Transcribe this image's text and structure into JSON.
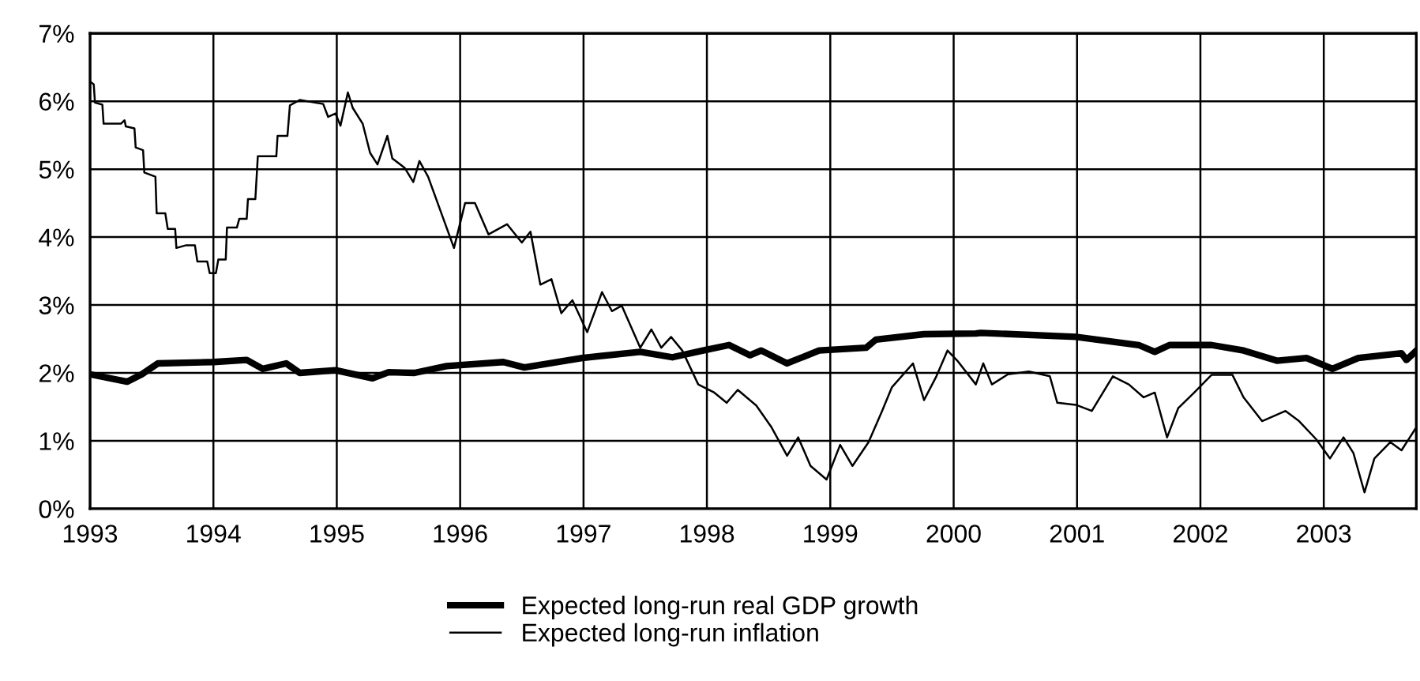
{
  "chart_data": {
    "type": "line",
    "xlim": [
      1993,
      2003.75
    ],
    "ylim": [
      0,
      7
    ],
    "xticks": [
      1993,
      1994,
      1995,
      1996,
      1997,
      1998,
      1999,
      2000,
      2001,
      2002,
      2003
    ],
    "yticks": [
      {
        "value": 0,
        "label": "0%"
      },
      {
        "value": 1,
        "label": "1%"
      },
      {
        "value": 2,
        "label": "2%"
      },
      {
        "value": 3,
        "label": "3%"
      },
      {
        "value": 4,
        "label": "4%"
      },
      {
        "value": 5,
        "label": "5%"
      },
      {
        "value": 6,
        "label": "6%"
      },
      {
        "value": 7,
        "label": "7%"
      }
    ],
    "grid": true,
    "legend": "bottom",
    "line_style": "solid",
    "marker": "none",
    "series": [
      {
        "name": "Expected long-run real GDP growth",
        "color": "#000000",
        "x": [
          1993.0,
          1993.3,
          1993.42,
          1993.55,
          1994.0,
          1994.27,
          1994.4,
          1994.59,
          1994.7,
          1994.99,
          1995.29,
          1995.42,
          1995.63,
          1995.89,
          1996.35,
          1996.52,
          1996.99,
          1997.46,
          1997.72,
          1997.97,
          1998.18,
          1998.35,
          1998.44,
          1998.65,
          1998.91,
          1999.29,
          1999.37,
          1999.76,
          2000.18,
          2000.22,
          2000.99,
          2001.5,
          2001.63,
          2001.75,
          2002.09,
          2002.35,
          2002.62,
          2002.86,
          2003.07,
          2003.28,
          2003.63,
          2003.67,
          2003.74
        ],
        "values": [
          1.98,
          1.87,
          1.98,
          2.14,
          2.16,
          2.19,
          2.06,
          2.14,
          2.0,
          2.04,
          1.92,
          2.01,
          2.0,
          2.1,
          2.16,
          2.08,
          2.22,
          2.31,
          2.23,
          2.33,
          2.41,
          2.26,
          2.33,
          2.14,
          2.33,
          2.37,
          2.49,
          2.57,
          2.58,
          2.59,
          2.53,
          2.41,
          2.31,
          2.41,
          2.41,
          2.33,
          2.18,
          2.22,
          2.06,
          2.22,
          2.29,
          2.19,
          2.31
        ]
      },
      {
        "name": "Expected long-run inflation",
        "color": "#000000",
        "x": [
          1993.0,
          1993.03,
          1993.04,
          1993.1,
          1993.11,
          1993.25,
          1993.28,
          1993.29,
          1993.36,
          1993.37,
          1993.43,
          1993.44,
          1993.53,
          1993.54,
          1993.61,
          1993.63,
          1993.69,
          1993.7,
          1993.78,
          1993.85,
          1993.87,
          1993.95,
          1993.97,
          1994.02,
          1994.04,
          1994.1,
          1994.11,
          1994.19,
          1994.21,
          1994.27,
          1994.28,
          1994.34,
          1994.36,
          1994.51,
          1994.52,
          1994.6,
          1994.62,
          1994.7,
          1994.89,
          1994.93,
          1994.99,
          1995.03,
          1995.09,
          1995.13,
          1995.21,
          1995.27,
          1995.33,
          1995.41,
          1995.45,
          1995.55,
          1995.62,
          1995.67,
          1995.74,
          1995.84,
          1995.95,
          1996.04,
          1996.12,
          1996.23,
          1996.35,
          1996.38,
          1996.5,
          1996.57,
          1996.65,
          1996.74,
          1996.82,
          1996.91,
          1997.03,
          1997.15,
          1997.23,
          1997.31,
          1997.46,
          1997.55,
          1997.63,
          1997.71,
          1997.8,
          1997.93,
          1998.06,
          1998.16,
          1998.25,
          1998.4,
          1998.52,
          1998.65,
          1998.74,
          1998.84,
          1998.97,
          1999.08,
          1999.18,
          1999.31,
          1999.42,
          1999.5,
          1999.67,
          1999.76,
          1999.86,
          1999.95,
          2000.03,
          2000.18,
          2000.24,
          2000.31,
          2000.44,
          2000.61,
          2000.78,
          2000.84,
          2000.99,
          2001.12,
          2001.29,
          2001.42,
          2001.54,
          2001.63,
          2001.73,
          2001.82,
          2001.95,
          2002.09,
          2002.26,
          2002.35,
          2002.5,
          2002.69,
          2002.8,
          2002.94,
          2003.05,
          2003.16,
          2003.24,
          2003.33,
          2003.41,
          2003.54,
          2003.63,
          2003.74
        ],
        "values": [
          6.29,
          6.25,
          5.98,
          5.95,
          5.67,
          5.67,
          5.72,
          5.63,
          5.6,
          5.32,
          5.28,
          4.95,
          4.89,
          4.35,
          4.35,
          4.12,
          4.12,
          3.84,
          3.88,
          3.88,
          3.64,
          3.64,
          3.47,
          3.47,
          3.67,
          3.67,
          4.14,
          4.14,
          4.27,
          4.27,
          4.56,
          4.56,
          5.19,
          5.19,
          5.49,
          5.49,
          5.94,
          6.02,
          5.96,
          5.77,
          5.82,
          5.64,
          6.13,
          5.9,
          5.67,
          5.24,
          5.07,
          5.49,
          5.16,
          5.02,
          4.81,
          5.12,
          4.89,
          4.39,
          3.84,
          4.5,
          4.5,
          4.04,
          4.16,
          4.19,
          3.92,
          4.08,
          3.3,
          3.38,
          2.88,
          3.07,
          2.6,
          3.19,
          2.91,
          2.99,
          2.37,
          2.64,
          2.37,
          2.53,
          2.33,
          1.83,
          1.71,
          1.56,
          1.75,
          1.52,
          1.21,
          0.78,
          1.05,
          0.63,
          0.43,
          0.94,
          0.63,
          0.98,
          1.44,
          1.79,
          2.14,
          1.6,
          1.95,
          2.33,
          2.18,
          1.83,
          2.14,
          1.83,
          1.98,
          2.02,
          1.95,
          1.56,
          1.53,
          1.44,
          1.95,
          1.83,
          1.64,
          1.71,
          1.05,
          1.48,
          1.71,
          1.97,
          1.97,
          1.64,
          1.29,
          1.44,
          1.29,
          1.02,
          0.74,
          1.05,
          0.82,
          0.24,
          0.74,
          0.98,
          0.86,
          1.17
        ]
      }
    ]
  }
}
